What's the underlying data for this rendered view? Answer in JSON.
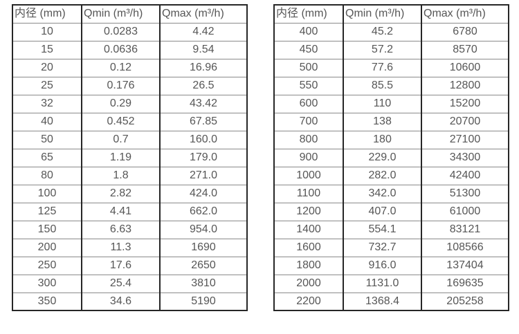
{
  "page": {
    "background_color": "#ffffff",
    "text_color": "#565656",
    "border_dark_color": "#262626",
    "row_line_color": "#8a8a8a"
  },
  "tables": [
    {
      "title": "flow-range-table-small-diameters",
      "columns": [
        "内径 (mm)",
        "Qmin (m³/h)",
        "Qmax (m³/h)"
      ],
      "rows": [
        [
          "10",
          "0.0283",
          "4.42"
        ],
        [
          "15",
          "0.0636",
          "9.54"
        ],
        [
          "20",
          "0.12",
          "16.96"
        ],
        [
          "25",
          "0.176",
          "26.5"
        ],
        [
          "32",
          "0.29",
          "43.42"
        ],
        [
          "40",
          "0.452",
          "67.85"
        ],
        [
          "50",
          "0.7",
          "160.0"
        ],
        [
          "65",
          "1.19",
          "179.0"
        ],
        [
          "80",
          "1.8",
          "271.0"
        ],
        [
          "100",
          "2.82",
          "424.0"
        ],
        [
          "125",
          "4.41",
          "662.0"
        ],
        [
          "150",
          "6.63",
          "954.0"
        ],
        [
          "200",
          "11.3",
          "1690"
        ],
        [
          "250",
          "17.6",
          "2650"
        ],
        [
          "300",
          "25.4",
          "3810"
        ],
        [
          "350",
          "34.6",
          "5190"
        ]
      ]
    },
    {
      "title": "flow-range-table-large-diameters",
      "columns": [
        "内径 (mm)",
        "Qmin (m³/h)",
        "Qmax (m³/h)"
      ],
      "rows": [
        [
          "400",
          "45.2",
          "6780"
        ],
        [
          "450",
          "57.2",
          "8570"
        ],
        [
          "500",
          "77.6",
          "10600"
        ],
        [
          "550",
          "85.5",
          "12800"
        ],
        [
          "600",
          "110",
          "15200"
        ],
        [
          "700",
          "138",
          "20700"
        ],
        [
          "800",
          "180",
          "27100"
        ],
        [
          "900",
          "229.0",
          "34300"
        ],
        [
          "1000",
          "282.0",
          "42400"
        ],
        [
          "1100",
          "342.0",
          "51300"
        ],
        [
          "1200",
          "407.0",
          "61000"
        ],
        [
          "1400",
          "554.1",
          "83121"
        ],
        [
          "1600",
          "732.7",
          "108566"
        ],
        [
          "1800",
          "916.0",
          "137404"
        ],
        [
          "2000",
          "1131.0",
          "169635"
        ],
        [
          "2200",
          "1368.4",
          "205258"
        ]
      ]
    }
  ]
}
